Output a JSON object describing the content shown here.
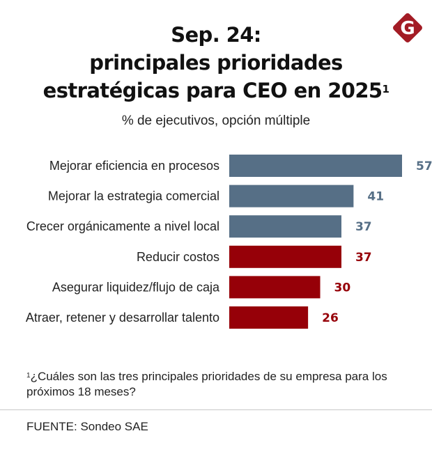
{
  "logo": {
    "letter": "G",
    "color": "#a31c25"
  },
  "title": {
    "line1": "Sep. 24:",
    "line2": "principales prioridades",
    "line3": "estratégicas para CEO en 2025",
    "superscript": "1"
  },
  "subtitle": "% de ejecutivos, opción múltiple",
  "footnote": {
    "marker": "1",
    "text": "¿Cuáles son las tres principales prioridades de su empresa para los próximos 18 meses?"
  },
  "source": "FUENTE: Sondeo SAE",
  "chart_data": {
    "type": "bar",
    "orientation": "horizontal",
    "title": "Sep. 24: principales prioridades estratégicas para CEO en 2025",
    "subtitle": "% de ejecutivos, opción múltiple",
    "xlabel": "",
    "ylabel": "",
    "xlim": [
      0,
      57
    ],
    "grid": false,
    "legend": null,
    "unit": "%",
    "categories": [
      "Mejorar eficiencia en procesos",
      "Mejorar la estrategia comercial",
      "Crecer orgánicamente a nivel local",
      "Reducir costos",
      "Asegurar liquidez/flujo de caja",
      "Atraer, retener y desarrollar talento"
    ],
    "values": [
      57,
      41,
      37,
      37,
      30,
      26
    ],
    "groups": [
      "growth",
      "growth",
      "growth",
      "cost",
      "cost",
      "cost"
    ],
    "colors": {
      "growth": "#566f86",
      "cost": "#960008"
    }
  }
}
